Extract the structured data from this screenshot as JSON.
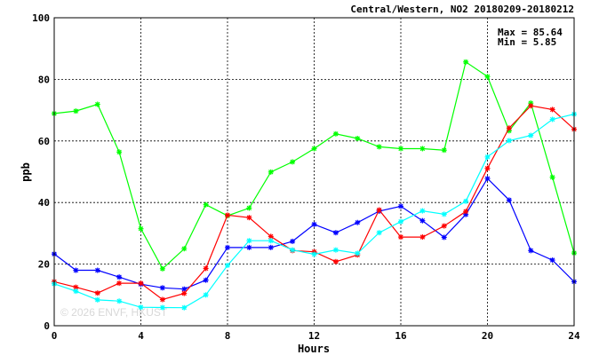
{
  "chart_data": {
    "type": "line",
    "title": "Central/Western, NO2 20180209-20180212",
    "xlabel": "Hours",
    "ylabel": "ppb",
    "xlim": [
      0,
      24
    ],
    "ylim": [
      0,
      100
    ],
    "xticks": [
      0,
      4,
      8,
      12,
      16,
      20,
      24
    ],
    "yticks": [
      0,
      20,
      40,
      60,
      80,
      100
    ],
    "grid": true,
    "stats": {
      "max": "Max = 85.64",
      "min": "Min =  5.85"
    },
    "watermark": "© 2026  ENVF, HKUST",
    "series": [
      {
        "color": "#00ff00",
        "x": [
          0,
          1,
          2,
          3,
          4,
          5,
          6,
          7,
          8,
          9,
          10,
          11,
          12,
          13,
          14,
          15,
          16,
          17,
          18,
          19,
          20,
          21,
          22,
          23,
          24
        ],
        "values": [
          68.9,
          69.7,
          71.9,
          56.4,
          31.5,
          18.5,
          25.0,
          39.3,
          35.7,
          38.2,
          49.9,
          53.2,
          57.5,
          62.3,
          60.8,
          58.1,
          57.5,
          57.5,
          57.0,
          85.64,
          80.9,
          63.3,
          72.3,
          48.2,
          23.6
        ]
      },
      {
        "color": "#0000ff",
        "x": [
          0,
          1,
          2,
          3,
          4,
          5,
          6,
          7,
          8,
          9,
          10,
          11,
          12,
          13,
          14,
          15,
          16,
          17,
          18,
          19,
          20,
          21,
          22,
          23,
          24
        ],
        "values": [
          23.3,
          18.0,
          18.0,
          15.8,
          13.5,
          12.3,
          11.9,
          14.8,
          25.4,
          25.4,
          25.4,
          27.4,
          32.9,
          30.2,
          33.5,
          37.2,
          38.8,
          34.1,
          28.7,
          36.1,
          47.8,
          40.8,
          24.4,
          21.3,
          14.3
        ]
      },
      {
        "color": "#ff0000",
        "x": [
          0,
          1,
          2,
          3,
          4,
          5,
          6,
          7,
          8,
          9,
          10,
          11,
          12,
          13,
          14,
          15,
          16,
          17,
          18,
          19,
          20,
          21,
          22,
          23,
          24
        ],
        "values": [
          14.3,
          12.5,
          10.6,
          13.8,
          13.8,
          8.5,
          10.5,
          18.6,
          35.9,
          35.1,
          29.0,
          24.4,
          24.0,
          20.8,
          23.0,
          37.6,
          28.8,
          28.8,
          32.4,
          37.1,
          51.1,
          64.2,
          71.4,
          70.2,
          63.8
        ]
      },
      {
        "color": "#00ffff",
        "x": [
          0,
          1,
          2,
          3,
          4,
          5,
          6,
          7,
          8,
          9,
          10,
          11,
          12,
          13,
          14,
          15,
          16,
          17,
          18,
          19,
          20,
          21,
          22,
          23,
          24
        ],
        "values": [
          13.6,
          11.2,
          8.4,
          8.0,
          6.0,
          5.9,
          5.85,
          10.0,
          19.6,
          27.6,
          27.6,
          24.6,
          23.2,
          24.6,
          23.5,
          30.2,
          33.8,
          37.3,
          36.2,
          40.4,
          54.8,
          60.1,
          61.8,
          67.0,
          68.7
        ]
      }
    ]
  }
}
